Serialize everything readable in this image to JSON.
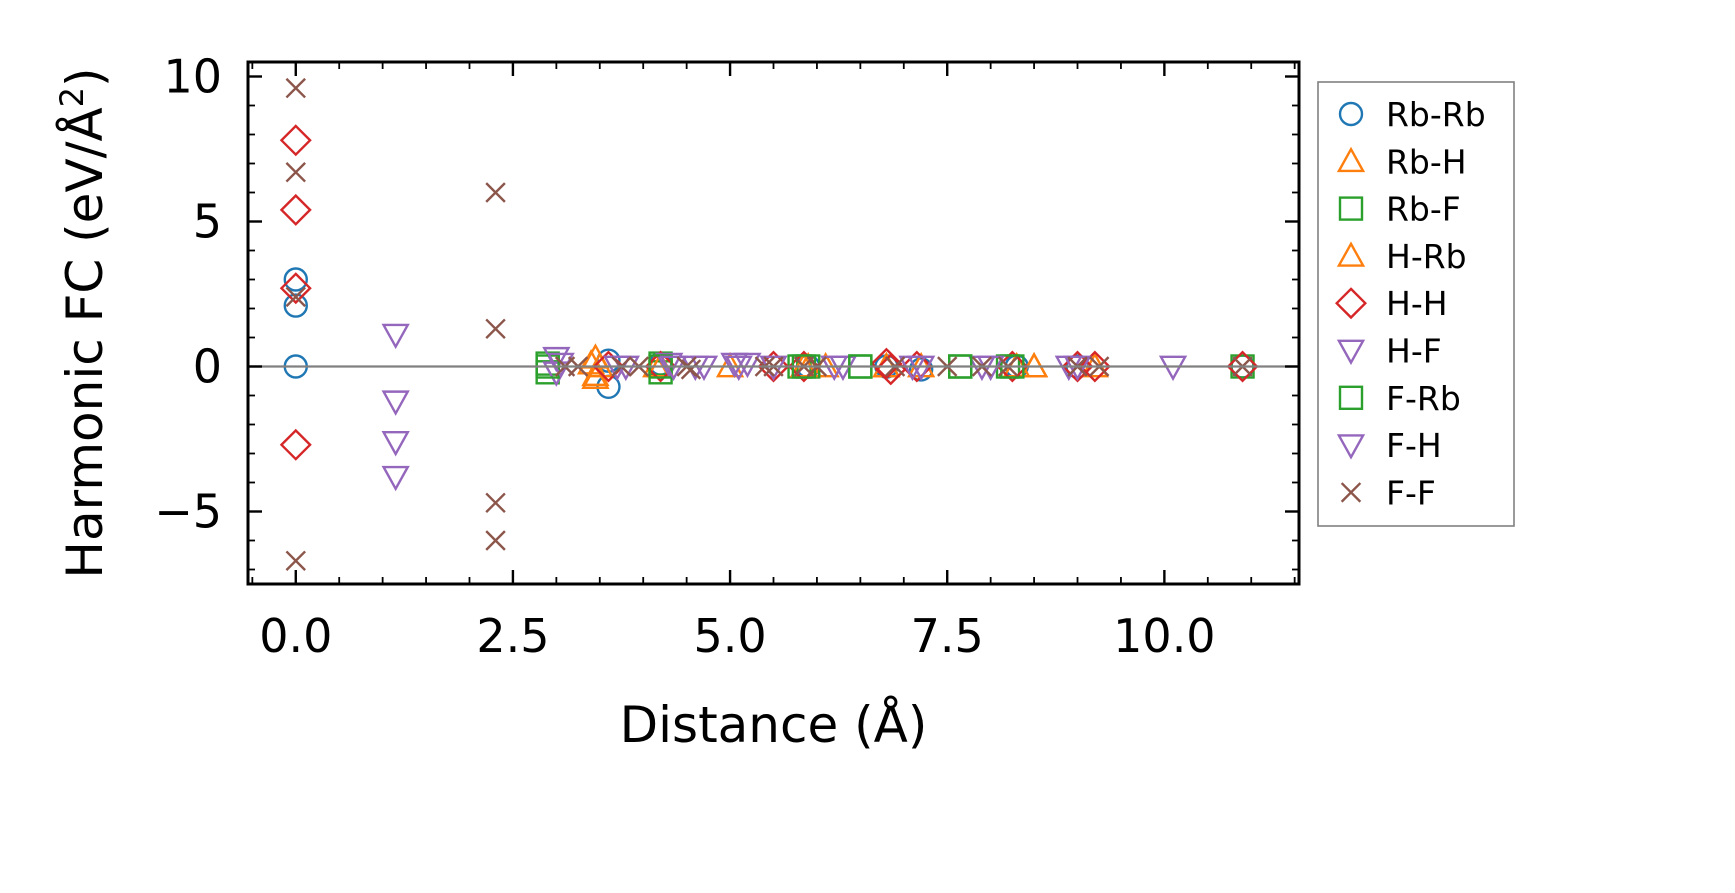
{
  "chart_data": {
    "type": "scatter",
    "title": "",
    "xlabel": "Distance (Å)",
    "ylabel": {
      "base": "Harmonic FC (eV/Å",
      "sup": "2",
      "close": ")"
    },
    "xlim": [
      -0.55,
      11.55
    ],
    "ylim": [
      -7.5,
      10.5
    ],
    "xticks": [
      {
        "value": 0.0,
        "label": "0.0"
      },
      {
        "value": 2.5,
        "label": "2.5"
      },
      {
        "value": 5.0,
        "label": "5.0"
      },
      {
        "value": 7.5,
        "label": "7.5"
      },
      {
        "value": 10.0,
        "label": "10.0"
      }
    ],
    "yticks": [
      {
        "value": -5,
        "label": "−5"
      },
      {
        "value": 0,
        "label": "0"
      },
      {
        "value": 5,
        "label": "5"
      },
      {
        "value": 10,
        "label": "10"
      }
    ],
    "grid": false,
    "zero_line": true,
    "legend_position": "outside-right",
    "colors": {
      "axis": "#000000",
      "zero_line": "#808080",
      "legend_border": "#808080"
    },
    "series": [
      {
        "name": "Rb-Rb",
        "marker": "circle",
        "color": "#1f77b4",
        "points": [
          [
            0,
            3.0
          ],
          [
            0,
            2.1
          ],
          [
            0,
            0.0
          ],
          [
            3.6,
            0.2
          ],
          [
            3.6,
            -0.7
          ],
          [
            4.2,
            0.0
          ],
          [
            4.2,
            0.1
          ],
          [
            5.9,
            0.0
          ],
          [
            6.8,
            0.0
          ],
          [
            7.2,
            -0.1
          ],
          [
            8.3,
            0.0
          ],
          [
            9.0,
            0.0
          ],
          [
            10.9,
            0.0
          ]
        ]
      },
      {
        "name": "Rb-H",
        "marker": "triangle-up",
        "color": "#ff7f0e",
        "points": [
          [
            3.45,
            0.3
          ],
          [
            3.45,
            -0.3
          ],
          [
            3.5,
            0.0
          ],
          [
            4.15,
            0.0
          ],
          [
            5.0,
            0.0
          ],
          [
            5.9,
            0.0
          ],
          [
            6.1,
            0.0
          ],
          [
            6.8,
            0.0
          ],
          [
            7.2,
            0.0
          ],
          [
            8.3,
            0.0
          ],
          [
            8.5,
            0.0
          ],
          [
            9.2,
            0.0
          ]
        ]
      },
      {
        "name": "Rb-F",
        "marker": "square",
        "color": "#2ca02c",
        "points": [
          [
            2.9,
            0.1
          ],
          [
            2.9,
            -0.2
          ],
          [
            4.2,
            0.1
          ],
          [
            4.2,
            -0.2
          ],
          [
            5.8,
            0.0
          ],
          [
            5.9,
            0.0
          ],
          [
            6.5,
            0.0
          ],
          [
            7.65,
            0.0
          ],
          [
            8.2,
            0.0
          ],
          [
            10.9,
            0.0
          ]
        ]
      },
      {
        "name": "H-Rb",
        "marker": "triangle-up",
        "color": "#ff7f0e",
        "points": [
          [
            3.4,
            0.1
          ],
          [
            3.45,
            -0.4
          ],
          [
            4.2,
            0.0
          ],
          [
            5.85,
            0.0
          ],
          [
            6.8,
            0.0
          ],
          [
            8.5,
            0.0
          ]
        ]
      },
      {
        "name": "H-H",
        "marker": "diamond",
        "color": "#d62728",
        "points": [
          [
            0,
            7.8
          ],
          [
            0,
            5.4
          ],
          [
            0,
            2.7
          ],
          [
            0,
            -2.7
          ],
          [
            3.6,
            0.0
          ],
          [
            4.2,
            0.0
          ],
          [
            5.5,
            0.0
          ],
          [
            5.85,
            0.0
          ],
          [
            6.8,
            0.1
          ],
          [
            6.85,
            -0.1
          ],
          [
            7.15,
            0.0
          ],
          [
            8.25,
            0.0
          ],
          [
            9.0,
            0.0
          ],
          [
            9.2,
            0.0
          ],
          [
            10.9,
            0.0
          ]
        ]
      },
      {
        "name": "H-F",
        "marker": "triangle-down",
        "color": "#9467bd",
        "points": [
          [
            1.15,
            1.1
          ],
          [
            1.15,
            -1.2
          ],
          [
            1.15,
            -2.6
          ],
          [
            1.15,
            -3.8
          ],
          [
            3.0,
            0.3
          ],
          [
            3.0,
            -0.2
          ],
          [
            3.7,
            0.0
          ],
          [
            4.3,
            0.1
          ],
          [
            4.7,
            0.0
          ],
          [
            5.05,
            0.1
          ],
          [
            5.5,
            0.0
          ],
          [
            6.3,
            0.0
          ],
          [
            7.1,
            0.0
          ],
          [
            7.9,
            0.0
          ],
          [
            8.9,
            0.0
          ],
          [
            10.1,
            0.0
          ]
        ]
      },
      {
        "name": "F-Rb",
        "marker": "square",
        "color": "#2ca02c",
        "points": [
          [
            2.9,
            0.0
          ],
          [
            4.2,
            0.0
          ],
          [
            5.85,
            0.0
          ],
          [
            6.5,
            0.0
          ],
          [
            7.65,
            0.0
          ],
          [
            8.25,
            0.0
          ]
        ]
      },
      {
        "name": "F-H",
        "marker": "triangle-down",
        "color": "#9467bd",
        "points": [
          [
            3.05,
            0.1
          ],
          [
            3.8,
            0.0
          ],
          [
            4.35,
            0.0
          ],
          [
            4.6,
            0.0
          ],
          [
            5.1,
            0.0
          ],
          [
            5.2,
            0.1
          ],
          [
            6.2,
            0.0
          ],
          [
            7.2,
            0.0
          ],
          [
            8.0,
            0.0
          ],
          [
            9.0,
            0.0
          ]
        ]
      },
      {
        "name": "F-F",
        "marker": "x",
        "color": "#8c564b",
        "points": [
          [
            0,
            9.6
          ],
          [
            0,
            6.7
          ],
          [
            0,
            2.4
          ],
          [
            0,
            -6.7
          ],
          [
            2.3,
            6.0
          ],
          [
            2.3,
            1.3
          ],
          [
            2.3,
            -4.7
          ],
          [
            2.3,
            -6.0
          ],
          [
            3.1,
            0.0
          ],
          [
            3.25,
            0.0
          ],
          [
            3.75,
            0.0
          ],
          [
            3.95,
            0.0
          ],
          [
            4.5,
            0.0
          ],
          [
            4.55,
            -0.1
          ],
          [
            5.4,
            0.0
          ],
          [
            5.5,
            0.0
          ],
          [
            5.85,
            0.0
          ],
          [
            6.0,
            0.0
          ],
          [
            6.9,
            0.0
          ],
          [
            7.5,
            0.0
          ],
          [
            7.9,
            0.0
          ],
          [
            8.2,
            0.0
          ],
          [
            9.0,
            0.0
          ],
          [
            9.25,
            0.0
          ],
          [
            10.9,
            0.0
          ]
        ]
      }
    ]
  }
}
